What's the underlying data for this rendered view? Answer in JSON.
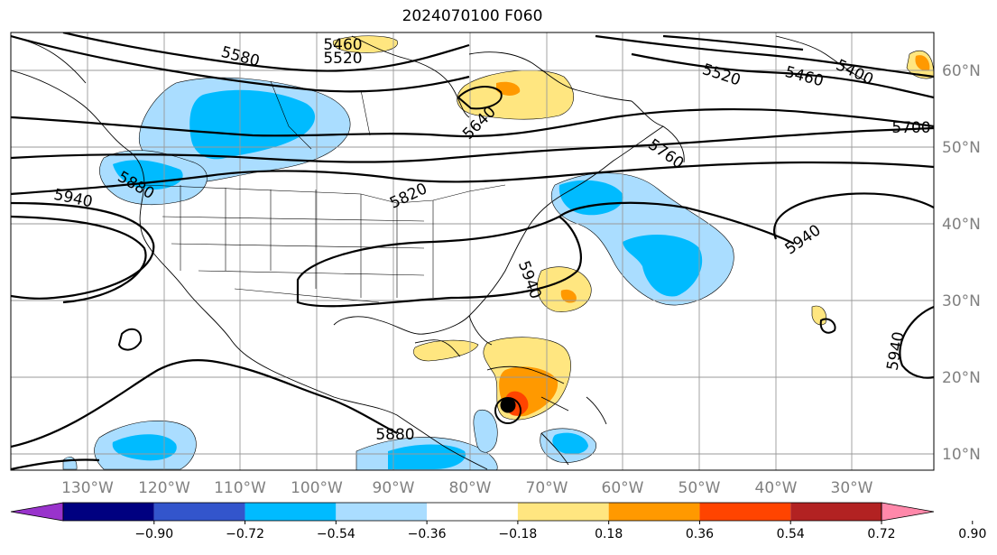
{
  "title": "2024070100 F060",
  "map": {
    "lon_labels": [
      "130°W",
      "120°W",
      "110°W",
      "100°W",
      "90°W",
      "80°W",
      "70°W",
      "60°W",
      "50°W",
      "40°W",
      "30°W"
    ],
    "lat_labels": [
      "60°N",
      "50°N",
      "40°N",
      "30°N",
      "20°N",
      "10°N"
    ],
    "contour_labels": [
      "5460",
      "5520",
      "5580",
      "5640",
      "5700",
      "5760",
      "5820",
      "5880",
      "5940",
      "5460",
      "5400",
      "5520",
      "5940",
      "5940",
      "5940",
      "5880"
    ]
  },
  "colorbar": {
    "ticks": [
      "−0.90",
      "−0.72",
      "−0.54",
      "−0.36",
      "−0.18",
      "0.18",
      "0.36",
      "0.54",
      "0.72",
      "0.90"
    ],
    "colors": [
      "#9933cc",
      "#000080",
      "#3355cc",
      "#00bbff",
      "#aaddff",
      "#ffffff",
      "#ffe680",
      "#ff9900",
      "#ff4400",
      "#b22222",
      "#ff88aa"
    ]
  }
}
